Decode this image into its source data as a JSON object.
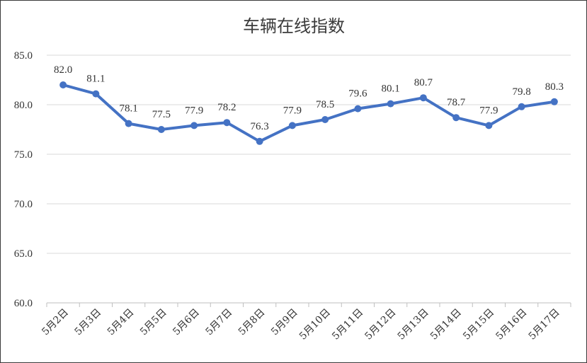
{
  "chart_data": {
    "type": "line",
    "title": "车辆在线指数",
    "xlabel": "",
    "ylabel": "",
    "categories": [
      "5月2日",
      "5月3日",
      "5月4日",
      "5月5日",
      "5月6日",
      "5月7日",
      "5月8日",
      "5月9日",
      "5月10日",
      "5月11日",
      "5月12日",
      "5月13日",
      "5月14日",
      "5月15日",
      "5月16日",
      "5月17日"
    ],
    "series": [
      {
        "values": [
          82.0,
          81.1,
          78.1,
          77.5,
          77.9,
          78.2,
          76.3,
          77.9,
          78.5,
          79.6,
          80.1,
          80.7,
          78.7,
          77.9,
          79.8,
          80.3
        ]
      }
    ],
    "ylim": [
      60.0,
      85.0
    ],
    "yticks": [
      "60.0",
      "65.0",
      "70.0",
      "75.0",
      "80.0",
      "85.0"
    ],
    "grid": true,
    "legend": "none",
    "colors": {
      "series": "#4472c4",
      "grid": "#d9d9d9"
    }
  }
}
